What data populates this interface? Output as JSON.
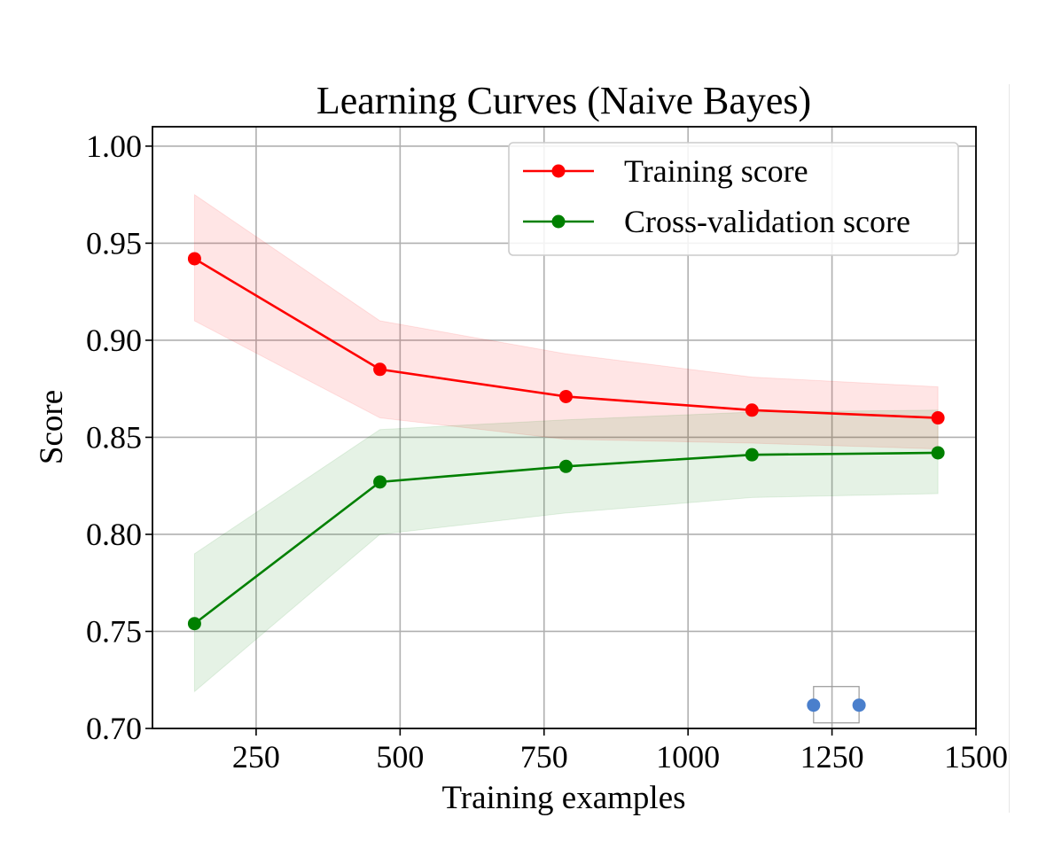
{
  "chart_data": {
    "type": "line",
    "title": "Learning Curves (Naive Bayes)",
    "xlabel": "Training examples",
    "ylabel": "Score",
    "xlim": [
      70,
      1500
    ],
    "ylim": [
      0.7,
      1.01
    ],
    "x_ticks": [
      250,
      500,
      750,
      1000,
      1250,
      1500
    ],
    "y_ticks": [
      0.7,
      0.75,
      0.8,
      0.85,
      0.9,
      0.95,
      1.0
    ],
    "x_tick_labels": [
      "250",
      "500",
      "750",
      "1000",
      "1250",
      "1500"
    ],
    "y_tick_labels": [
      "0.70",
      "0.75",
      "0.80",
      "0.85",
      "0.90",
      "0.95",
      "1.00"
    ],
    "grid": true,
    "legend_position": "top-right",
    "x": [
      143,
      465,
      788,
      1111,
      1434
    ],
    "series": [
      {
        "name": "Training score",
        "color": "#ff0000",
        "band_color": "#ffcccc",
        "values": [
          0.942,
          0.885,
          0.871,
          0.864,
          0.86
        ],
        "upper": [
          0.975,
          0.91,
          0.893,
          0.881,
          0.876
        ],
        "lower": [
          0.91,
          0.86,
          0.849,
          0.847,
          0.844
        ]
      },
      {
        "name": "Cross-validation score",
        "color": "#008000",
        "band_color": "#c8e6c8",
        "values": [
          0.754,
          0.827,
          0.835,
          0.841,
          0.842
        ],
        "upper": [
          0.79,
          0.854,
          0.859,
          0.863,
          0.864
        ],
        "lower": [
          0.719,
          0.8,
          0.811,
          0.819,
          0.821
        ]
      }
    ],
    "annotation": {
      "type": "selection-handles",
      "x_range": [
        1218,
        1297
      ],
      "y": 0.712,
      "color": "#4a7fcc"
    }
  }
}
